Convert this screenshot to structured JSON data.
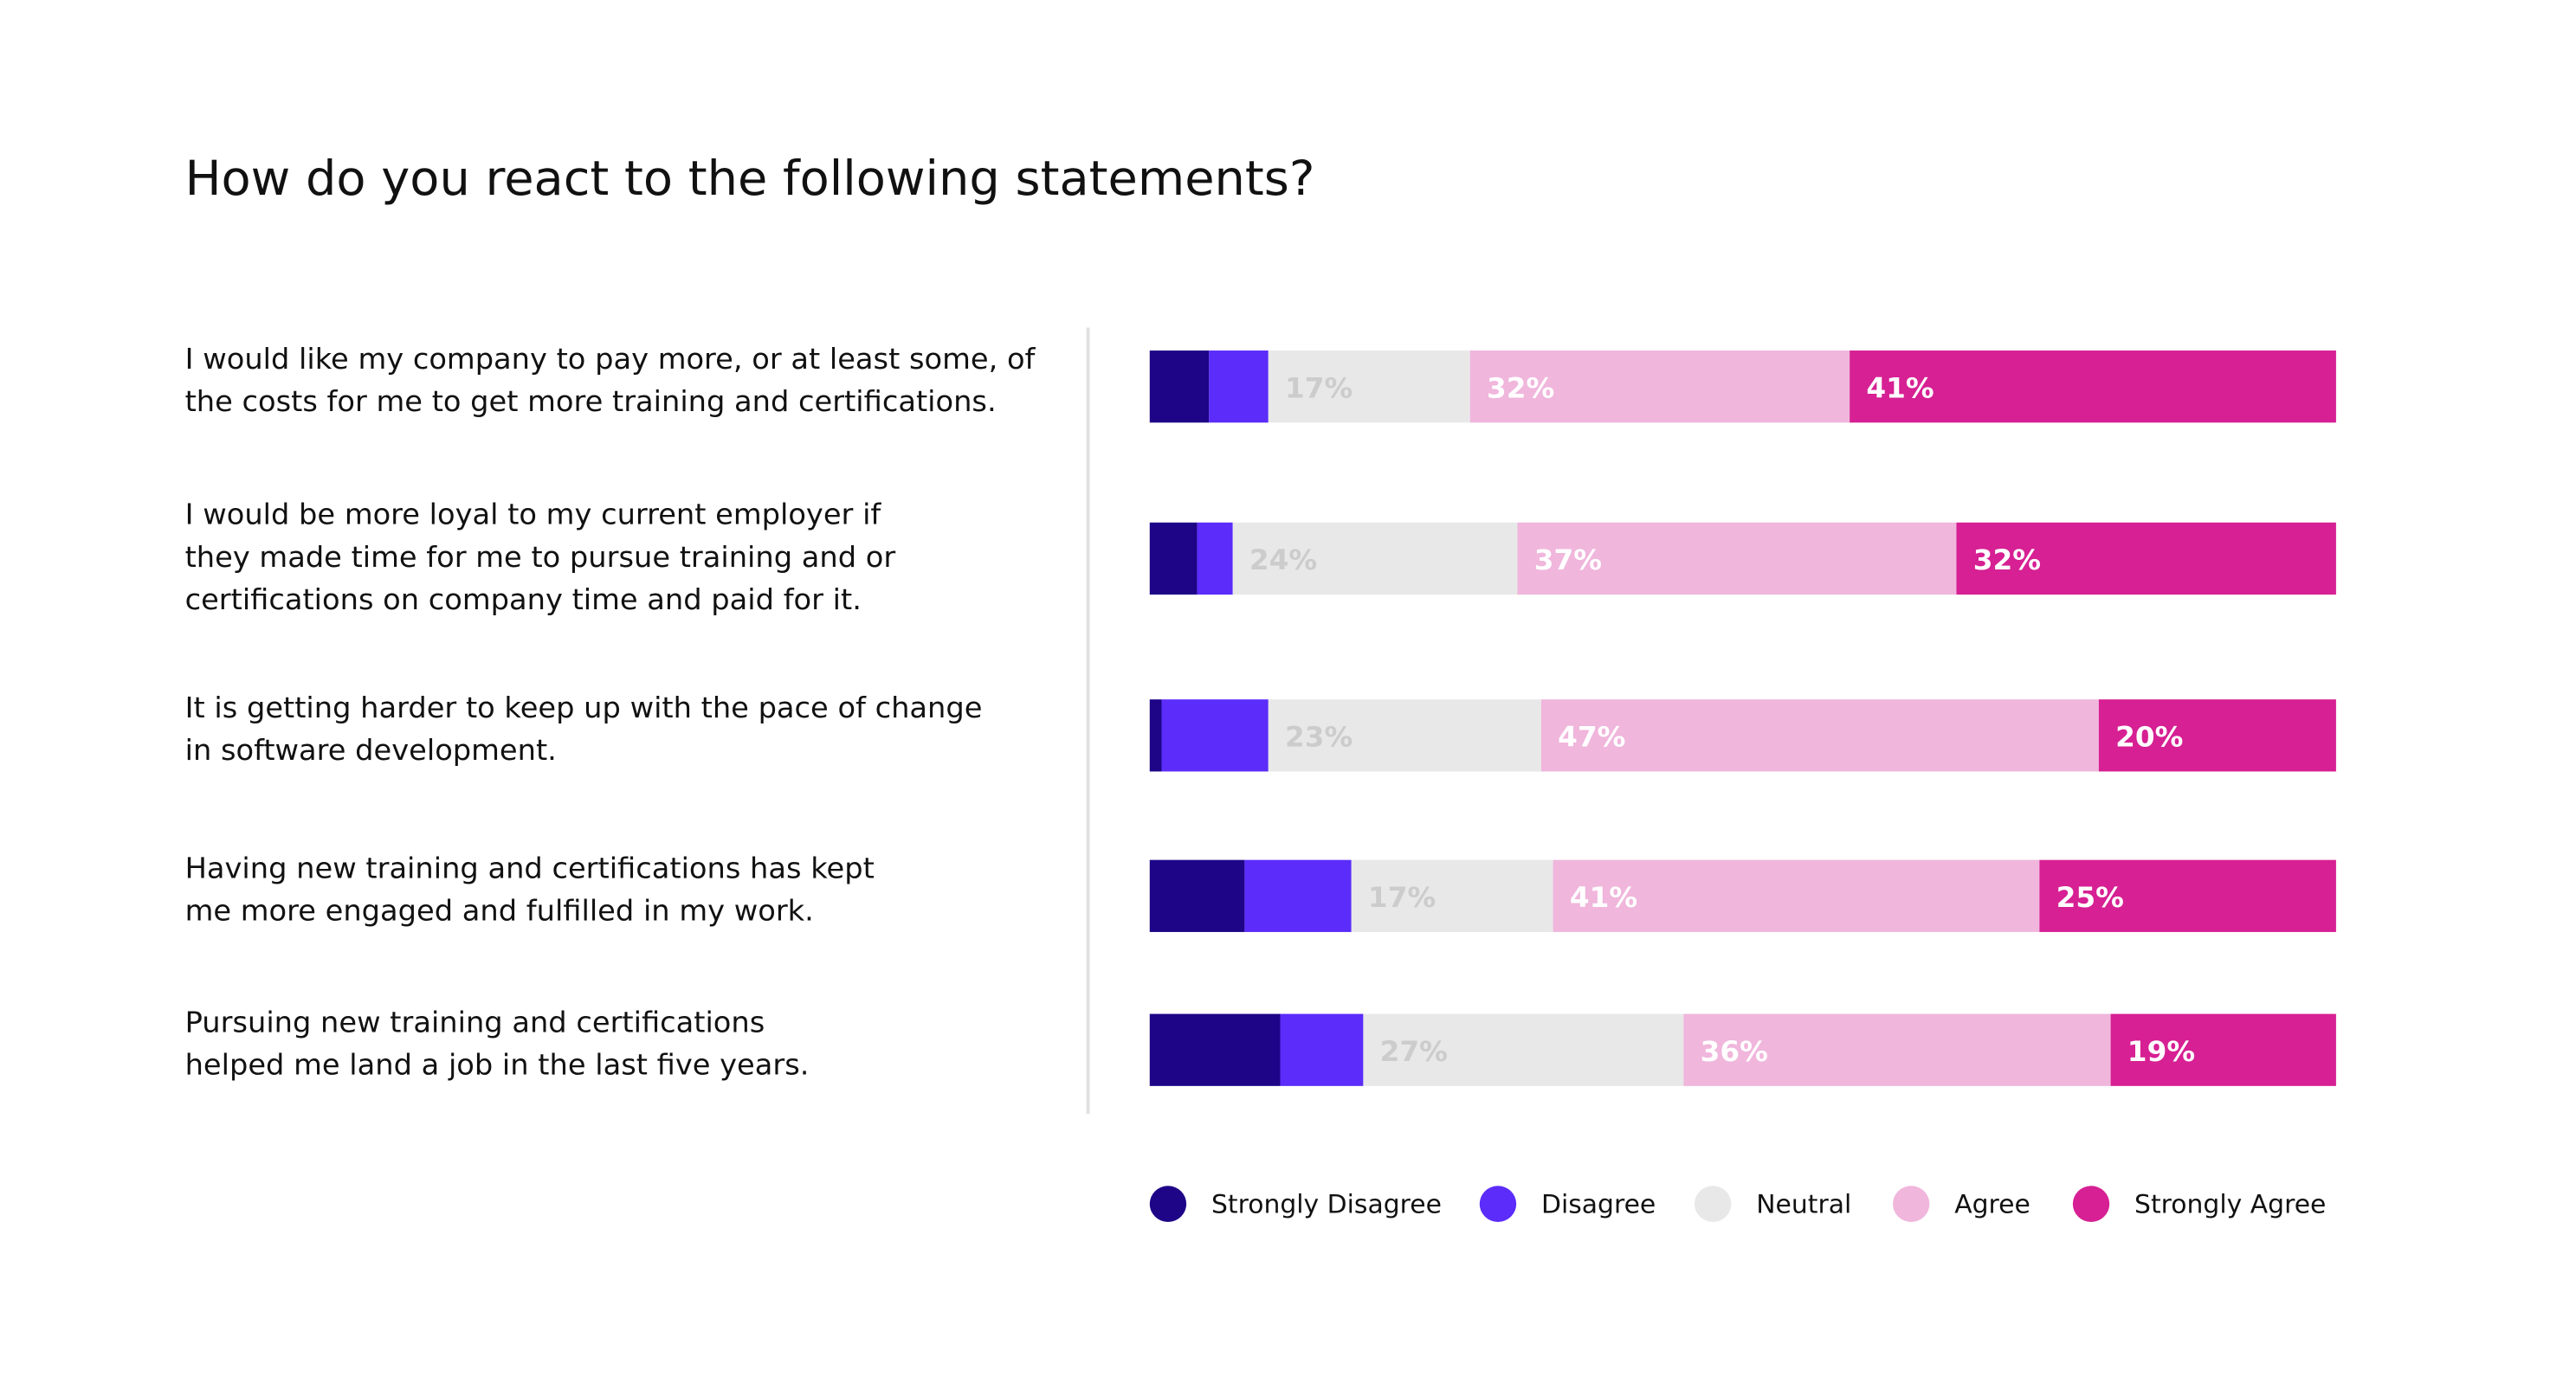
{
  "chart_data": {
    "type": "stacked-bar",
    "orientation": "horizontal",
    "title": "How do you react to the following statements?",
    "categories": [
      [
        "I would like my company to pay more, or at least some, of",
        "the costs for me to get more training and certifications."
      ],
      [
        "I would be more loyal to my current employer if",
        "they made time for me to pursue training and or",
        "certifications on company time and paid for it."
      ],
      [
        "It is getting harder to keep up with the pace of change",
        "in software development."
      ],
      [
        "Having new training and certifications has kept",
        "me more engaged and fulfilled in my work."
      ],
      [
        "Pursuing new training and certifications",
        "helped me land a job in the last five years."
      ]
    ],
    "series": [
      {
        "name": "Strongly Disagree",
        "color": "#1e0587",
        "values": [
          5,
          4,
          1,
          8,
          11
        ]
      },
      {
        "name": "Disagree",
        "color": "#5b2cfa",
        "values": [
          5,
          3,
          9,
          9,
          7
        ]
      },
      {
        "name": "Neutral",
        "color": "#e8e8e8",
        "values": [
          17,
          24,
          23,
          17,
          27
        ],
        "value_labels": [
          "17%",
          "24%",
          "23%",
          "17%",
          "27%"
        ],
        "label_color": "#cccccc"
      },
      {
        "name": "Agree",
        "color": "#f0b6dc",
        "values": [
          32,
          37,
          47,
          41,
          36
        ],
        "value_labels": [
          "32%",
          "37%",
          "47%",
          "41%",
          "36%"
        ],
        "label_color": "#ffffff"
      },
      {
        "name": "Strongly Agree",
        "color": "#d62093",
        "values": [
          41,
          32,
          20,
          25,
          19
        ],
        "value_labels": [
          "41%",
          "32%",
          "20%",
          "25%",
          "19%"
        ],
        "label_color": "#ffffff"
      }
    ],
    "xlim": [
      0,
      100
    ],
    "legend": "bottom"
  }
}
